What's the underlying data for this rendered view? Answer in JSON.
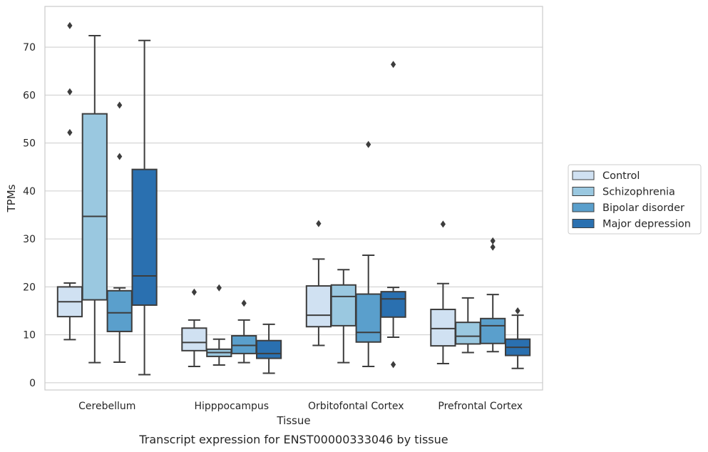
{
  "chart_data": {
    "type": "box",
    "title": "",
    "caption": "Transcript expression for ENST00000333046 by tissue",
    "xlabel": "Tissue",
    "ylabel": "TPMs",
    "ylim": [
      -1.5,
      78.5
    ],
    "yticks": [
      0,
      10,
      20,
      30,
      40,
      50,
      60,
      70
    ],
    "grid": "horizontal",
    "legend_position": "right",
    "categories": [
      "Cerebellum",
      "Hipppocampus",
      "Orbitofontal Cortex",
      "Prefrontal Cortex"
    ],
    "series": [
      {
        "name": "Control",
        "color": "#d0e1f2",
        "boxes": [
          {
            "whisker_low": 9.0,
            "q1": 13.8,
            "median": 16.9,
            "q3": 20.0,
            "whisker_high": 20.8,
            "outliers": [
              74.5,
              60.7,
              52.2
            ]
          },
          {
            "whisker_low": 3.4,
            "q1": 6.7,
            "median": 8.4,
            "q3": 11.4,
            "whisker_high": 13.1,
            "outliers": [
              18.9
            ]
          },
          {
            "whisker_low": 7.8,
            "q1": 11.7,
            "median": 14.1,
            "q3": 20.2,
            "whisker_high": 25.8,
            "outliers": [
              33.2
            ]
          },
          {
            "whisker_low": 4.0,
            "q1": 7.7,
            "median": 11.3,
            "q3": 15.3,
            "whisker_high": 20.7,
            "outliers": [
              33.1
            ]
          }
        ]
      },
      {
        "name": "Schizophrenia",
        "color": "#9ac8e0",
        "boxes": [
          {
            "whisker_low": 4.2,
            "q1": 17.3,
            "median": 34.7,
            "q3": 56.1,
            "whisker_high": 72.4,
            "outliers": []
          },
          {
            "whisker_low": 3.7,
            "q1": 5.5,
            "median": 6.3,
            "q3": 7.0,
            "whisker_high": 9.1,
            "outliers": [
              19.8
            ]
          },
          {
            "whisker_low": 4.2,
            "q1": 11.9,
            "median": 18.0,
            "q3": 20.4,
            "whisker_high": 23.6,
            "outliers": []
          },
          {
            "whisker_low": 6.3,
            "q1": 8.1,
            "median": 9.7,
            "q3": 12.6,
            "whisker_high": 17.7,
            "outliers": []
          }
        ]
      },
      {
        "name": "Bipolar disorder",
        "color": "#5a9fcc",
        "boxes": [
          {
            "whisker_low": 4.3,
            "q1": 10.7,
            "median": 14.6,
            "q3": 19.2,
            "whisker_high": 19.8,
            "outliers": [
              57.9,
              47.2
            ]
          },
          {
            "whisker_low": 4.2,
            "q1": 6.1,
            "median": 7.8,
            "q3": 9.8,
            "whisker_high": 13.1,
            "outliers": [
              16.6
            ]
          },
          {
            "whisker_low": 3.4,
            "q1": 8.5,
            "median": 10.5,
            "q3": 18.5,
            "whisker_high": 26.6,
            "outliers": [
              49.7
            ]
          },
          {
            "whisker_low": 6.5,
            "q1": 8.2,
            "median": 11.9,
            "q3": 13.4,
            "whisker_high": 18.4,
            "outliers": [
              29.6,
              28.3
            ]
          }
        ]
      },
      {
        "name": "Major depression",
        "color": "#2a70b0",
        "boxes": [
          {
            "whisker_low": 1.7,
            "q1": 16.2,
            "median": 22.3,
            "q3": 44.5,
            "whisker_high": 71.4,
            "outliers": []
          },
          {
            "whisker_low": 2.0,
            "q1": 5.1,
            "median": 6.1,
            "q3": 8.8,
            "whisker_high": 12.2,
            "outliers": []
          },
          {
            "whisker_low": 9.5,
            "q1": 13.7,
            "median": 17.5,
            "q3": 19.0,
            "whisker_high": 19.9,
            "outliers": [
              66.4,
              3.8
            ]
          },
          {
            "whisker_low": 3.0,
            "q1": 5.7,
            "median": 7.4,
            "q3": 9.1,
            "whisker_high": 14.1,
            "outliers": [
              15.0
            ]
          }
        ]
      }
    ]
  }
}
